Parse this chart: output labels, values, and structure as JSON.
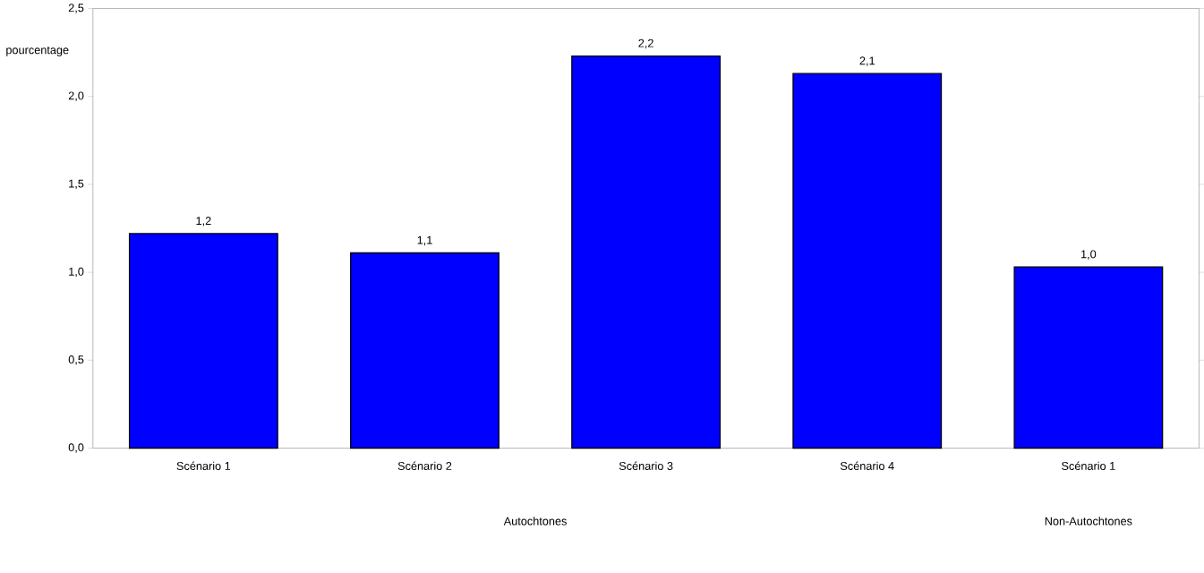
{
  "chart_data": {
    "type": "bar",
    "ylabel": "pourcentage",
    "categories": [
      "Scénario 1",
      "Scénario 2",
      "Scénario 3",
      "Scénario 4",
      "Scénario 1"
    ],
    "values": [
      1.22,
      1.11,
      2.23,
      2.13,
      1.03
    ],
    "value_labels": [
      "1,2",
      "1,1",
      "2,2",
      "2,1",
      "1,0"
    ],
    "color": "#0000ff",
    "ylim": [
      0,
      2.5
    ],
    "yticks": [
      {
        "value": 0,
        "label": "0,0"
      },
      {
        "value": 0.5,
        "label": "0,5"
      },
      {
        "value": 1,
        "label": "1,0"
      },
      {
        "value": 1.5,
        "label": "1,5"
      },
      {
        "value": 2,
        "label": "2,0"
      },
      {
        "value": 2.5,
        "label": "2,5"
      }
    ],
    "annotations": [
      "Autochtones",
      "Non-Autochtones"
    ]
  }
}
